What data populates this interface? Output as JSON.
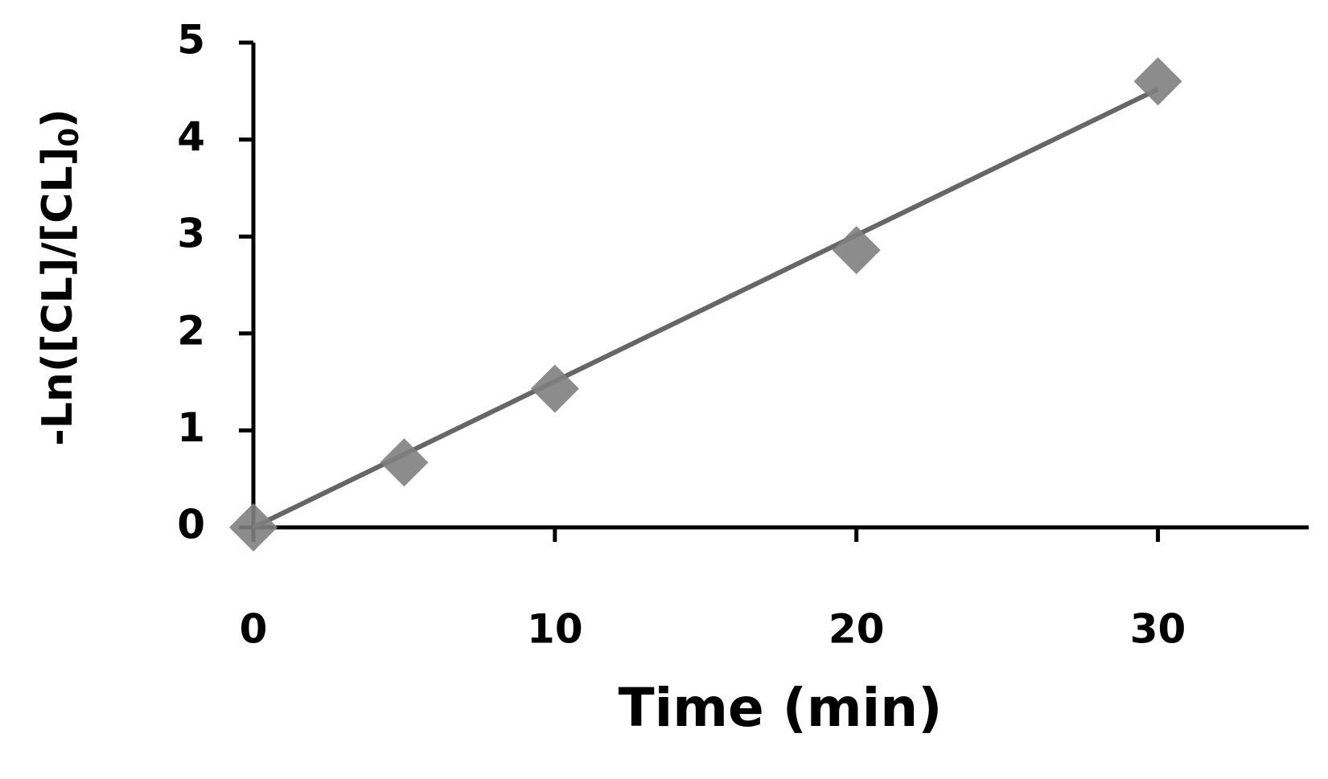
{
  "chart_data": {
    "type": "scatter",
    "xlabel": "Time (min)",
    "ylabel": {
      "text": "-Ln([CL]/[CL]",
      "subscript": "0",
      "tail": ")"
    },
    "x": [
      0,
      5,
      10,
      20,
      30
    ],
    "values": [
      0,
      0.67,
      1.43,
      2.86,
      4.6
    ],
    "color": "#808080",
    "trendline": {
      "x": [
        0,
        30
      ],
      "values": [
        0,
        4.52
      ],
      "color": "#666666"
    },
    "xlim": [
      0,
      35
    ],
    "xticks": [
      0,
      10,
      20,
      30
    ],
    "ylim": [
      0,
      5
    ],
    "yticks": [
      0,
      1,
      2,
      3,
      4,
      5
    ],
    "grid": false
  }
}
